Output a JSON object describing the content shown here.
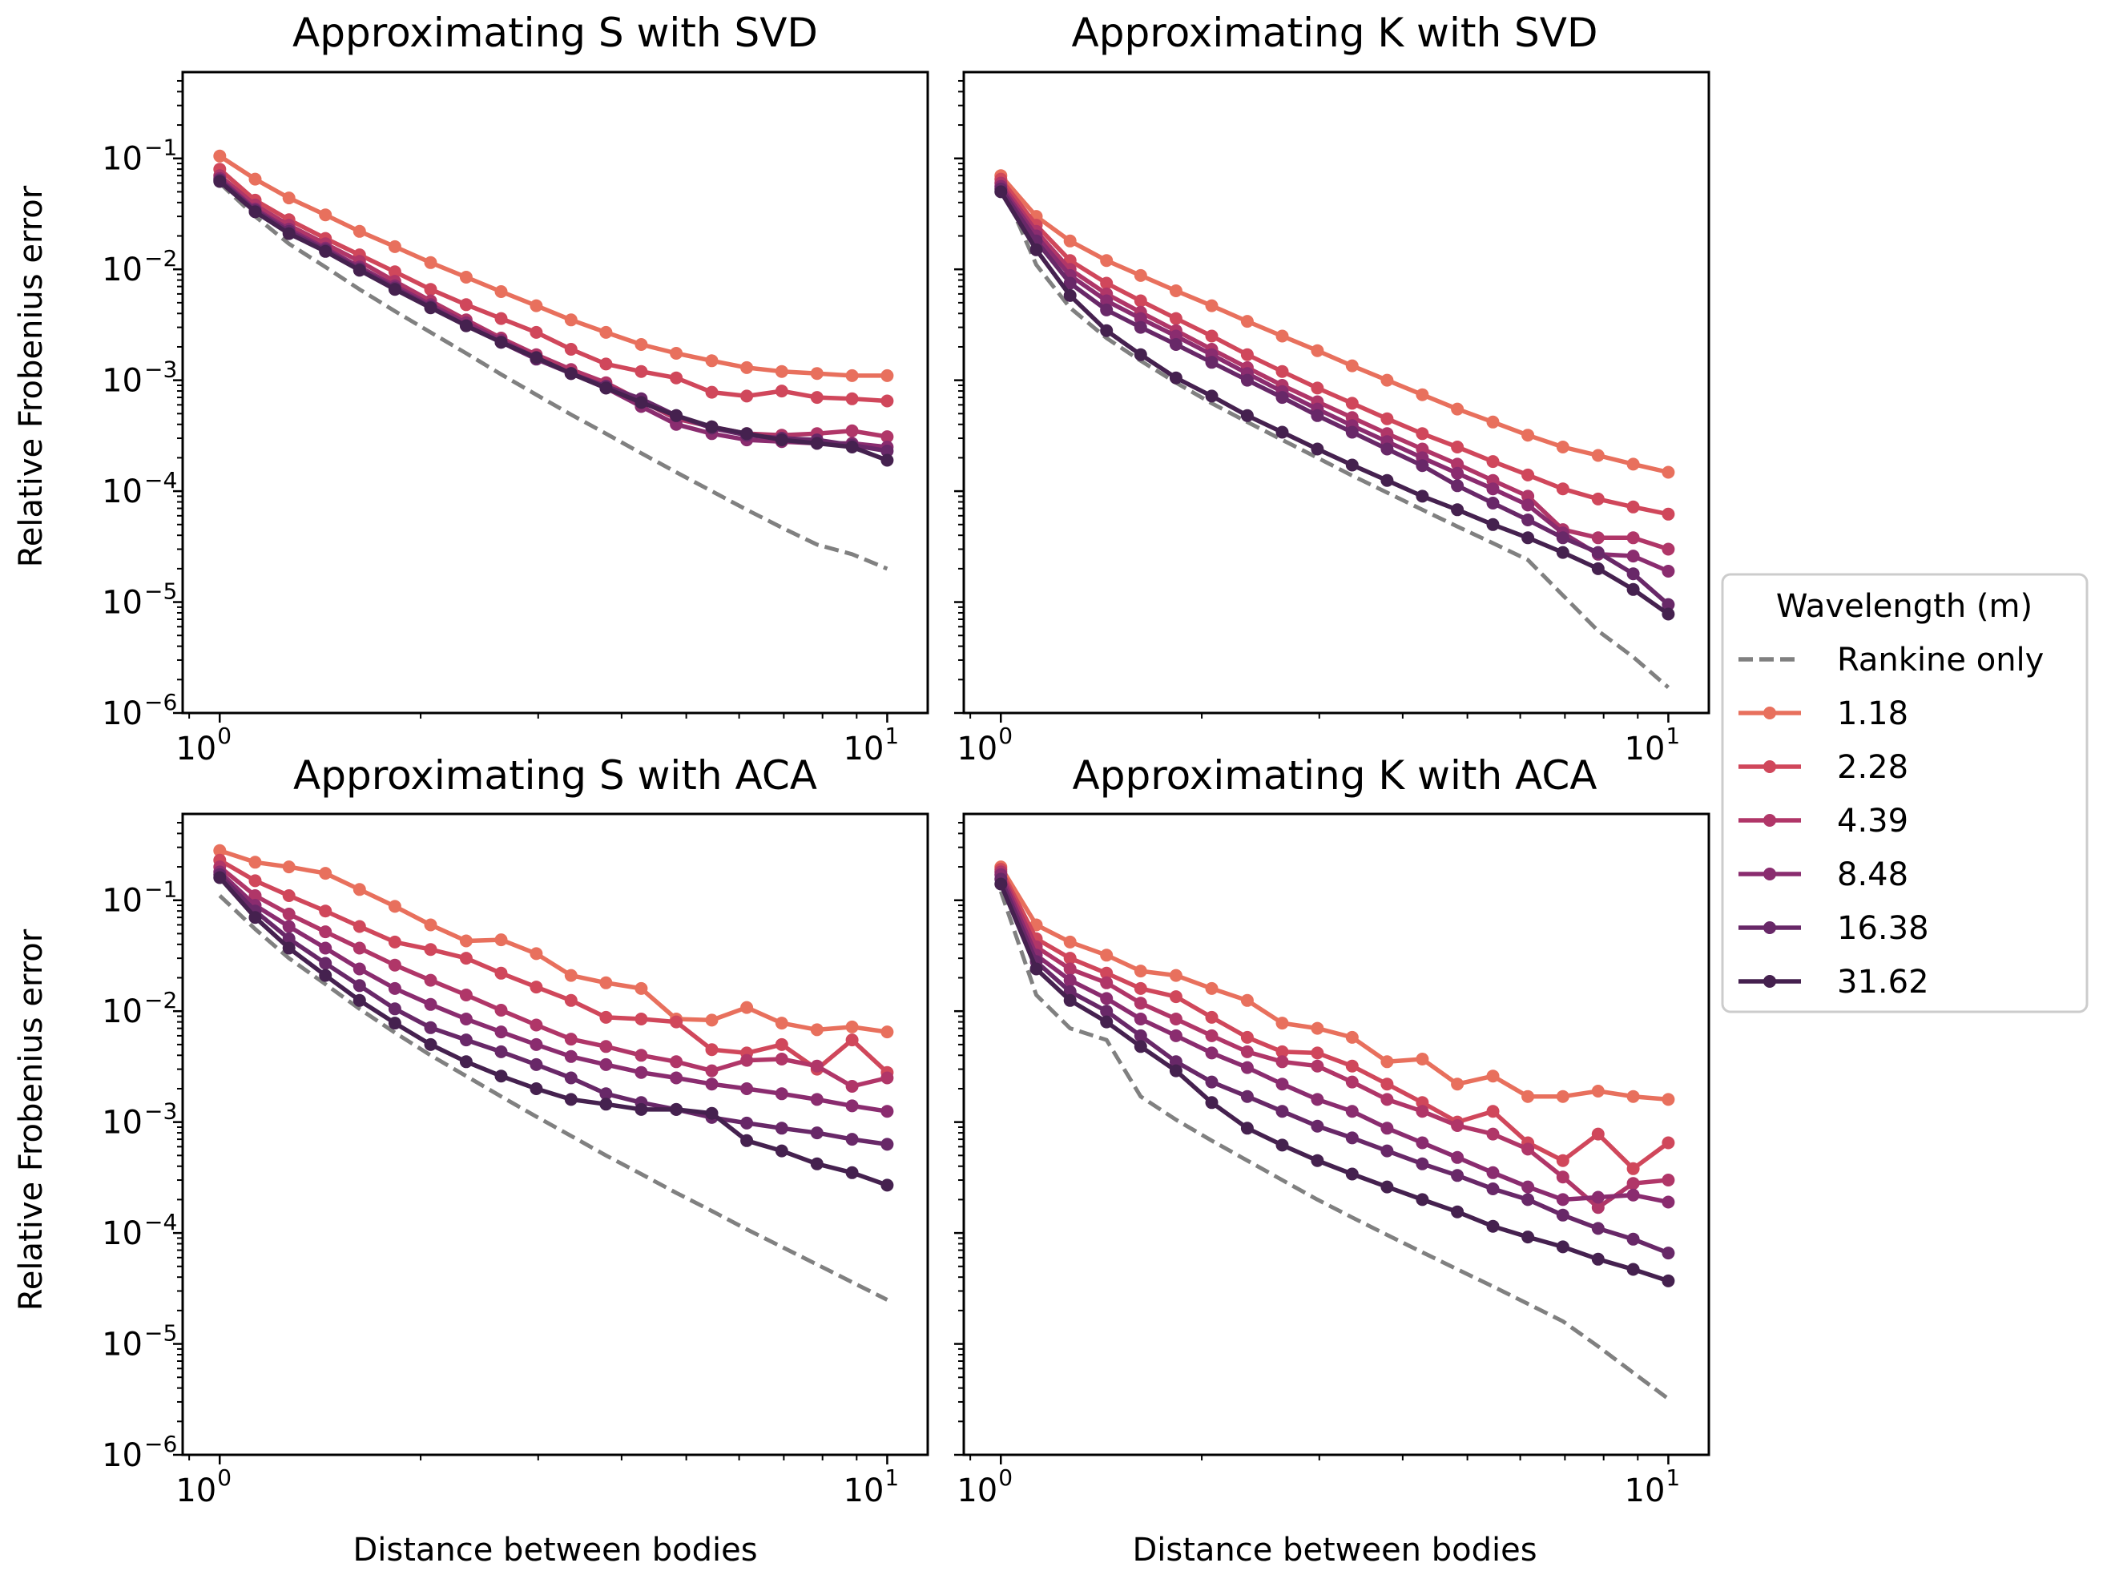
{
  "figure": {
    "xlabel": "Distance between bodies",
    "ylabel": "Relative Frobenius error",
    "x_tick_labels": [
      {
        "value": 1,
        "base": "10",
        "exp": "0"
      },
      {
        "value": 10,
        "base": "10",
        "exp": "1"
      }
    ],
    "y_tick_labels": [
      {
        "value": 0.1,
        "base": "10",
        "exp": "−1"
      },
      {
        "value": 0.01,
        "base": "10",
        "exp": "−2"
      },
      {
        "value": 0.001,
        "base": "10",
        "exp": "−3"
      },
      {
        "value": 0.0001,
        "base": "10",
        "exp": "−4"
      },
      {
        "value": 1e-05,
        "base": "10",
        "exp": "−5"
      },
      {
        "value": 1e-06,
        "base": "10",
        "exp": "−6"
      }
    ],
    "legend": {
      "title": "Wavelength (m)",
      "placement": "right",
      "entries": [
        {
          "label": "Rankine only",
          "color": "#808080",
          "style": "dashed"
        },
        {
          "label": "1.18",
          "color": "#e8705d"
        },
        {
          "label": "2.28",
          "color": "#d0475b"
        },
        {
          "label": "4.39",
          "color": "#b03668"
        },
        {
          "label": "8.48",
          "color": "#8a2c6f"
        },
        {
          "label": "16.38",
          "color": "#682868"
        },
        {
          "label": "31.62",
          "color": "#45214f"
        }
      ]
    }
  },
  "chart_data": [
    {
      "type": "line",
      "title": "Approximating S with SVD",
      "xlabel": "",
      "ylabel": "Relative Frobenius error",
      "xscale": "log",
      "yscale": "log",
      "xlim": [
        0.88,
        11.5
      ],
      "ylim": [
        1e-06,
        0.6
      ],
      "x": [
        1.0,
        1.13,
        1.27,
        1.44,
        1.62,
        1.83,
        2.07,
        2.34,
        2.64,
        2.98,
        3.36,
        3.79,
        4.28,
        4.83,
        5.46,
        6.16,
        6.95,
        7.85,
        8.86,
        10.0
      ],
      "series": [
        {
          "name": "Rankine only",
          "values": [
            0.06,
            0.03,
            0.017,
            0.0105,
            0.0066,
            0.0042,
            0.0027,
            0.00175,
            0.00113,
            0.00074,
            0.00049,
            0.00033,
            0.00022,
            0.000148,
            0.0001,
            6.8e-05,
            4.7e-05,
            3.3e-05,
            2.7e-05,
            2e-05
          ]
        },
        {
          "name": "1.18",
          "values": [
            0.105,
            0.065,
            0.044,
            0.031,
            0.022,
            0.016,
            0.0115,
            0.0085,
            0.0063,
            0.0047,
            0.0035,
            0.0027,
            0.0021,
            0.00175,
            0.0015,
            0.0013,
            0.0012,
            0.00115,
            0.0011,
            0.0011
          ]
        },
        {
          "name": "2.28",
          "values": [
            0.08,
            0.042,
            0.028,
            0.019,
            0.0135,
            0.0095,
            0.0066,
            0.0048,
            0.0036,
            0.0027,
            0.0019,
            0.0014,
            0.0012,
            0.00105,
            0.00078,
            0.00072,
            0.0008,
            0.0007,
            0.00068,
            0.00065
          ]
        },
        {
          "name": "4.39",
          "values": [
            0.07,
            0.038,
            0.025,
            0.017,
            0.0118,
            0.0078,
            0.0052,
            0.0035,
            0.0024,
            0.0017,
            0.00125,
            0.00095,
            0.00065,
            0.00045,
            0.00038,
            0.00033,
            0.00032,
            0.00033,
            0.00035,
            0.00031
          ]
        },
        {
          "name": "8.48",
          "values": [
            0.066,
            0.035,
            0.023,
            0.0155,
            0.0105,
            0.0071,
            0.0048,
            0.0033,
            0.0023,
            0.0016,
            0.00115,
            0.00085,
            0.00058,
            0.0004,
            0.00033,
            0.00029,
            0.00028,
            0.00027,
            0.00027,
            0.00025
          ]
        },
        {
          "name": "16.38",
          "values": [
            0.064,
            0.034,
            0.022,
            0.015,
            0.0101,
            0.0068,
            0.0046,
            0.0031,
            0.0022,
            0.00155,
            0.00115,
            0.00088,
            0.00068,
            0.00048,
            0.00037,
            0.00032,
            0.0003,
            0.00029,
            0.00026,
            0.00023
          ]
        },
        {
          "name": "31.62",
          "values": [
            0.062,
            0.033,
            0.021,
            0.0145,
            0.0098,
            0.0066,
            0.0045,
            0.0031,
            0.0022,
            0.0016,
            0.00115,
            0.00085,
            0.00063,
            0.00048,
            0.00038,
            0.00033,
            0.00029,
            0.00027,
            0.00025,
            0.00019
          ]
        }
      ]
    },
    {
      "type": "line",
      "title": "Approximating K with SVD",
      "xlabel": "",
      "ylabel": "",
      "xscale": "log",
      "yscale": "log",
      "xlim": [
        0.88,
        11.5
      ],
      "ylim": [
        1e-06,
        0.6
      ],
      "x": [
        1.0,
        1.13,
        1.27,
        1.44,
        1.62,
        1.83,
        2.07,
        2.34,
        2.64,
        2.98,
        3.36,
        3.79,
        4.28,
        4.83,
        5.46,
        6.16,
        6.95,
        7.85,
        8.86,
        10.0
      ],
      "series": [
        {
          "name": "Rankine only",
          "values": [
            0.06,
            0.011,
            0.0045,
            0.0024,
            0.0015,
            0.00095,
            0.00062,
            0.00042,
            0.00029,
            0.0002,
            0.000138,
            9.7e-05,
            6.8e-05,
            4.8e-05,
            3.4e-05,
            2.4e-05,
            1.15e-05,
            5.5e-06,
            3.2e-06,
            1.7e-06
          ]
        },
        {
          "name": "1.18",
          "values": [
            0.07,
            0.03,
            0.018,
            0.012,
            0.0088,
            0.0064,
            0.0047,
            0.0034,
            0.0025,
            0.00185,
            0.00135,
            0.001,
            0.00074,
            0.00055,
            0.00042,
            0.00032,
            0.00025,
            0.00021,
            0.000175,
            0.000148
          ]
        },
        {
          "name": "2.28",
          "values": [
            0.065,
            0.025,
            0.012,
            0.0075,
            0.0052,
            0.0036,
            0.0025,
            0.0017,
            0.0012,
            0.00085,
            0.00062,
            0.00045,
            0.00033,
            0.00025,
            0.000185,
            0.00014,
            0.000105,
            8.5e-05,
            7.2e-05,
            6.2e-05
          ]
        },
        {
          "name": "4.39",
          "values": [
            0.06,
            0.022,
            0.01,
            0.006,
            0.0041,
            0.0028,
            0.0019,
            0.0013,
            0.0009,
            0.00064,
            0.00046,
            0.00033,
            0.00024,
            0.000175,
            0.000125,
            9e-05,
            4.5e-05,
            3.8e-05,
            3.8e-05,
            3e-05
          ]
        },
        {
          "name": "8.48",
          "values": [
            0.056,
            0.02,
            0.0088,
            0.0052,
            0.0036,
            0.0025,
            0.0017,
            0.00115,
            0.00079,
            0.00055,
            0.00039,
            0.00028,
            0.0002,
            0.000145,
            0.000105,
            7.5e-05,
            4.2e-05,
            2.7e-05,
            2.6e-05,
            1.9e-05
          ]
        },
        {
          "name": "16.38",
          "values": [
            0.053,
            0.018,
            0.0075,
            0.0043,
            0.003,
            0.0021,
            0.00145,
            0.001,
            0.0007,
            0.00048,
            0.00034,
            0.00024,
            0.00017,
            0.000112,
            7.8e-05,
            5.5e-05,
            3.8e-05,
            2.8e-05,
            1.8e-05,
            9.5e-06
          ]
        },
        {
          "name": "31.62",
          "values": [
            0.05,
            0.015,
            0.0058,
            0.0028,
            0.0017,
            0.00105,
            0.00072,
            0.00048,
            0.00034,
            0.00024,
            0.000172,
            0.000125,
            9e-05,
            6.8e-05,
            5e-05,
            3.8e-05,
            2.8e-05,
            2e-05,
            1.3e-05,
            7.8e-06
          ]
        }
      ]
    },
    {
      "type": "line",
      "title": "Approximating S with ACA",
      "xlabel": "Distance between bodies",
      "ylabel": "Relative Frobenius error",
      "xscale": "log",
      "yscale": "log",
      "xlim": [
        0.88,
        11.5
      ],
      "ylim": [
        1e-06,
        0.6
      ],
      "x": [
        1.0,
        1.13,
        1.27,
        1.44,
        1.62,
        1.83,
        2.07,
        2.34,
        2.64,
        2.98,
        3.36,
        3.79,
        4.28,
        4.83,
        5.46,
        6.16,
        6.95,
        7.85,
        8.86,
        10.0
      ],
      "series": [
        {
          "name": "Rankine only",
          "values": [
            0.11,
            0.055,
            0.03,
            0.0175,
            0.0105,
            0.0064,
            0.004,
            0.0026,
            0.0017,
            0.00112,
            0.00075,
            0.0005,
            0.00034,
            0.00023,
            0.000158,
            0.000108,
            7.5e-05,
            5.2e-05,
            3.6e-05,
            2.5e-05
          ]
        },
        {
          "name": "1.18",
          "values": [
            0.28,
            0.22,
            0.2,
            0.175,
            0.125,
            0.088,
            0.06,
            0.043,
            0.044,
            0.033,
            0.021,
            0.018,
            0.016,
            0.0085,
            0.0083,
            0.0108,
            0.0078,
            0.0068,
            0.0072,
            0.0065
          ]
        },
        {
          "name": "2.28",
          "values": [
            0.23,
            0.15,
            0.11,
            0.08,
            0.058,
            0.042,
            0.036,
            0.03,
            0.022,
            0.0165,
            0.0125,
            0.0088,
            0.0085,
            0.008,
            0.0045,
            0.0042,
            0.005,
            0.003,
            0.0055,
            0.0028
          ]
        },
        {
          "name": "4.39",
          "values": [
            0.2,
            0.11,
            0.075,
            0.052,
            0.037,
            0.026,
            0.019,
            0.014,
            0.0102,
            0.0075,
            0.0056,
            0.0048,
            0.004,
            0.0035,
            0.0029,
            0.0036,
            0.0037,
            0.0032,
            0.0021,
            0.0025
          ]
        },
        {
          "name": "8.48",
          "values": [
            0.18,
            0.09,
            0.058,
            0.037,
            0.024,
            0.016,
            0.0115,
            0.0085,
            0.0065,
            0.005,
            0.0039,
            0.0033,
            0.0028,
            0.0025,
            0.0022,
            0.002,
            0.0018,
            0.0016,
            0.0014,
            0.00125
          ]
        },
        {
          "name": "16.38",
          "values": [
            0.17,
            0.08,
            0.045,
            0.027,
            0.017,
            0.0105,
            0.0071,
            0.0055,
            0.0043,
            0.0033,
            0.0025,
            0.0018,
            0.0015,
            0.0013,
            0.0011,
            0.00098,
            0.00088,
            0.0008,
            0.0007,
            0.00063
          ]
        },
        {
          "name": "31.62",
          "values": [
            0.16,
            0.07,
            0.037,
            0.021,
            0.0125,
            0.0078,
            0.005,
            0.0035,
            0.0026,
            0.002,
            0.0016,
            0.00145,
            0.0013,
            0.0013,
            0.0012,
            0.00068,
            0.00055,
            0.00042,
            0.00035,
            0.00027
          ]
        }
      ]
    },
    {
      "type": "line",
      "title": "Approximating K with ACA",
      "xlabel": "Distance between bodies",
      "ylabel": "",
      "xscale": "log",
      "yscale": "log",
      "xlim": [
        0.88,
        11.5
      ],
      "ylim": [
        1e-06,
        0.6
      ],
      "x": [
        1.0,
        1.13,
        1.27,
        1.44,
        1.62,
        1.83,
        2.07,
        2.34,
        2.64,
        2.98,
        3.36,
        3.79,
        4.28,
        4.83,
        5.46,
        6.16,
        6.95,
        7.85,
        8.86,
        10.0
      ],
      "series": [
        {
          "name": "Rankine only",
          "values": [
            0.12,
            0.014,
            0.007,
            0.0055,
            0.0017,
            0.00105,
            0.00068,
            0.00045,
            0.0003,
            0.0002,
            0.000138,
            9.6e-05,
            6.7e-05,
            4.7e-05,
            3.3e-05,
            2.3e-05,
            1.6e-05,
            9.5e-06,
            5.5e-06,
            3.2e-06
          ]
        },
        {
          "name": "1.18",
          "values": [
            0.2,
            0.06,
            0.042,
            0.032,
            0.023,
            0.021,
            0.016,
            0.0125,
            0.0078,
            0.007,
            0.0058,
            0.0035,
            0.0037,
            0.0022,
            0.0026,
            0.0017,
            0.0017,
            0.0019,
            0.0017,
            0.0016
          ]
        },
        {
          "name": "2.28",
          "values": [
            0.19,
            0.045,
            0.03,
            0.022,
            0.016,
            0.0135,
            0.0088,
            0.0058,
            0.0043,
            0.0042,
            0.0032,
            0.0022,
            0.0015,
            0.001,
            0.00125,
            0.00065,
            0.00045,
            0.00078,
            0.00038,
            0.00065
          ]
        },
        {
          "name": "4.39",
          "values": [
            0.18,
            0.038,
            0.024,
            0.018,
            0.0118,
            0.0085,
            0.006,
            0.0043,
            0.0035,
            0.0032,
            0.0023,
            0.0016,
            0.00125,
            0.00093,
            0.00078,
            0.00057,
            0.00032,
            0.00017,
            0.00028,
            0.0003
          ]
        },
        {
          "name": "8.48",
          "values": [
            0.17,
            0.032,
            0.019,
            0.013,
            0.0085,
            0.006,
            0.0042,
            0.0031,
            0.0022,
            0.0016,
            0.00125,
            0.00088,
            0.00065,
            0.00048,
            0.00035,
            0.00026,
            0.0002,
            0.00021,
            0.00022,
            0.00019
          ]
        },
        {
          "name": "16.38",
          "values": [
            0.155,
            0.028,
            0.015,
            0.01,
            0.006,
            0.0035,
            0.0023,
            0.0017,
            0.00125,
            0.00092,
            0.00072,
            0.00055,
            0.00042,
            0.00033,
            0.00025,
            0.0002,
            0.000145,
            0.00011,
            8.8e-05,
            6.6e-05
          ]
        },
        {
          "name": "31.62",
          "values": [
            0.14,
            0.024,
            0.0125,
            0.008,
            0.0048,
            0.0029,
            0.0015,
            0.00088,
            0.00062,
            0.00045,
            0.00034,
            0.00026,
            0.0002,
            0.000155,
            0.000115,
            9.2e-05,
            7.5e-05,
            5.8e-05,
            4.7e-05,
            3.7e-05
          ]
        }
      ]
    }
  ]
}
